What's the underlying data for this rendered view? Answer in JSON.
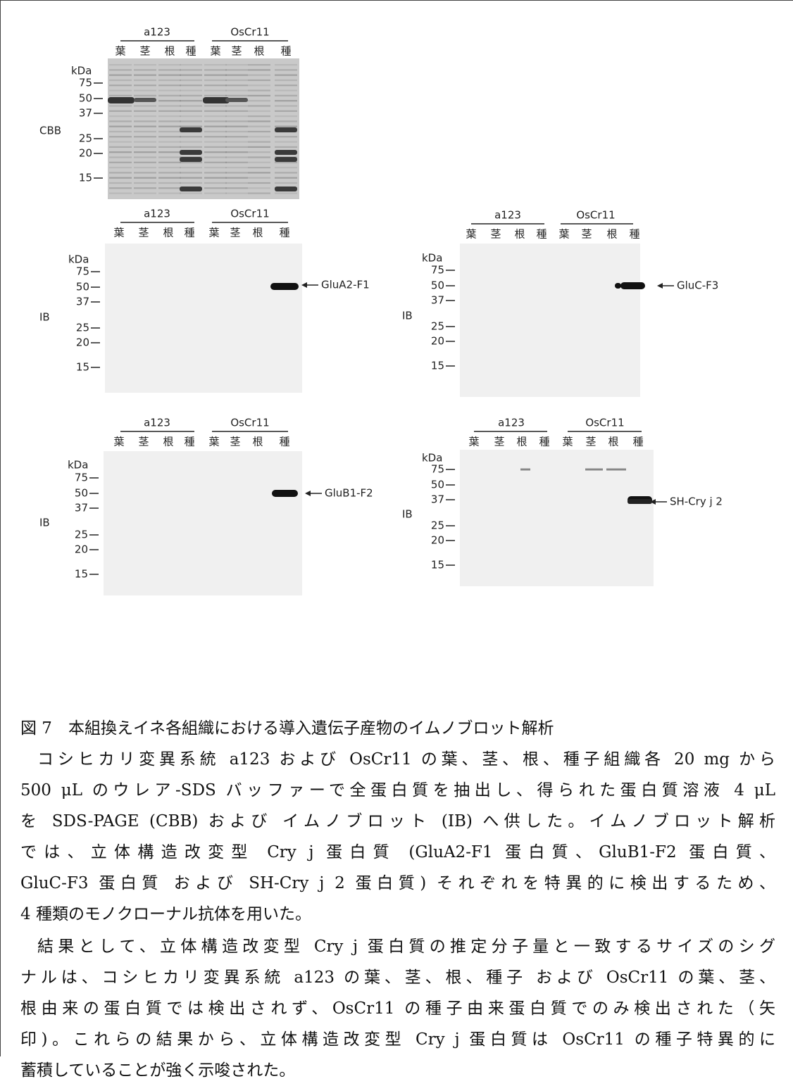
{
  "figure": {
    "panels": [
      {
        "side_label": "CBB",
        "groups": [
          "a123",
          "OsCr11"
        ],
        "lanes": [
          "葉",
          "茎",
          "根",
          "種",
          "葉",
          "茎",
          "根",
          "種"
        ],
        "kda": "kDa",
        "markers": [
          "75",
          "50",
          "37",
          "25",
          "20",
          "15"
        ]
      },
      {
        "side_label": "IB",
        "groups": [
          "a123",
          "OsCr11"
        ],
        "lanes": [
          "葉",
          "茎",
          "根",
          "種",
          "葉",
          "茎",
          "根",
          "種"
        ],
        "kda": "kDa",
        "markers": [
          "75",
          "50",
          "37",
          "25",
          "20",
          "15"
        ],
        "arrow_label": "GluA2-F1"
      },
      {
        "side_label": "IB",
        "groups": [
          "a123",
          "OsCr11"
        ],
        "lanes": [
          "葉",
          "茎",
          "根",
          "種",
          "葉",
          "茎",
          "根",
          "種"
        ],
        "kda": "kDa",
        "markers": [
          "75",
          "50",
          "37",
          "25",
          "20",
          "15"
        ],
        "arrow_label": "GluC-F3"
      },
      {
        "side_label": "IB",
        "groups": [
          "a123",
          "OsCr11"
        ],
        "lanes": [
          "葉",
          "茎",
          "根",
          "種",
          "葉",
          "茎",
          "根",
          "種"
        ],
        "kda": "kDa",
        "markers": [
          "75",
          "50",
          "37",
          "25",
          "20",
          "15"
        ],
        "arrow_label": "GluB1-F2"
      },
      {
        "side_label": "IB",
        "groups": [
          "a123",
          "OsCr11"
        ],
        "lanes": [
          "葉",
          "茎",
          "根",
          "種",
          "葉",
          "茎",
          "根",
          "種"
        ],
        "kda": "kDa",
        "markers": [
          "75",
          "50",
          "37",
          "25",
          "20",
          "15"
        ],
        "arrow_label": "SH-Cry j 2"
      }
    ]
  },
  "caption": {
    "title": "図 7　本組換えイネ各組織における導入遺伝子産物のイムノブロット解析",
    "paragraphs": [
      [
        "コシヒカリ変異系統 a123 および OsCr11 の葉、茎、根、種子組織各 20 mg から",
        "500 μL のウレア-SDS バッファーで全蛋白質を抽出し、得られた蛋白質溶液 4 μL",
        "を SDS-PAGE (CBB) および イムノブロット (IB) へ供した。イムノブロット解析",
        "では、立体構造改変型 Cry j 蛋白質 (GluA2-F1 蛋白質、GluB1-F2 蛋白質、",
        "GluC-F3 蛋白質 および SH-Cry j 2 蛋白質) それぞれを特異的に検出するため、",
        "4 種類のモノクローナル抗体を用いた。"
      ],
      [
        "結果として、立体構造改変型 Cry j 蛋白質の推定分子量と一致するサイズのシグ",
        "ナルは、コシヒカリ変異系統 a123 の葉、茎、根、種子 および OsCr11 の葉、茎、",
        "根由来の蛋白質では検出されず、OsCr11 の種子由来蛋白質でのみ検出された（矢",
        "印)。これらの結果から、立体構造改変型 Cry j 蛋白質は OsCr11 の種子特異的に",
        "蓄積していることが強く示唆された。"
      ]
    ]
  }
}
